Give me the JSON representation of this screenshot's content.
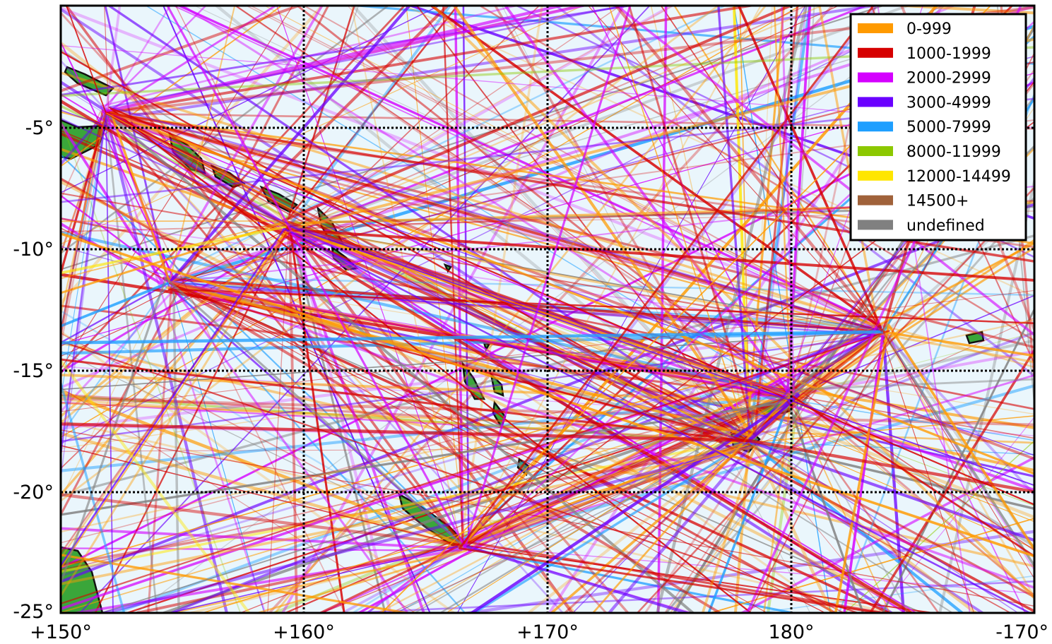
{
  "map": {
    "lon_range": [
      150,
      190
    ],
    "lat_range": [
      -25,
      0.5
    ],
    "ocean_color": "#eaf6fc",
    "land_color": "#3aa63a",
    "coast_color": "#111111",
    "grid": {
      "lons": [
        160,
        170,
        180
      ],
      "lats": [
        -5,
        -10,
        -15,
        -20
      ],
      "style": "dotted"
    }
  },
  "axes": {
    "x_ticks": [
      "+150°",
      "+160°",
      "+170°",
      "180°",
      "-170°"
    ],
    "y_ticks": [
      "-5°",
      "-10°",
      "-15°",
      "-20°",
      "-25°"
    ]
  },
  "legend": {
    "position": "top-right",
    "items": [
      {
        "label": "0-999",
        "color": "#ff9a00"
      },
      {
        "label": "1000-1999",
        "color": "#d60000"
      },
      {
        "label": "2000-2999",
        "color": "#d400ff"
      },
      {
        "label": "3000-4999",
        "color": "#6a00ff"
      },
      {
        "label": "5000-7999",
        "color": "#1e9fff"
      },
      {
        "label": "8000-11999",
        "color": "#8cc800"
      },
      {
        "label": "12000-14499",
        "color": "#ffe600"
      },
      {
        "label": "14500+",
        "color": "#a0623a"
      },
      {
        "label": "undefined",
        "color": "#808080"
      }
    ]
  }
}
